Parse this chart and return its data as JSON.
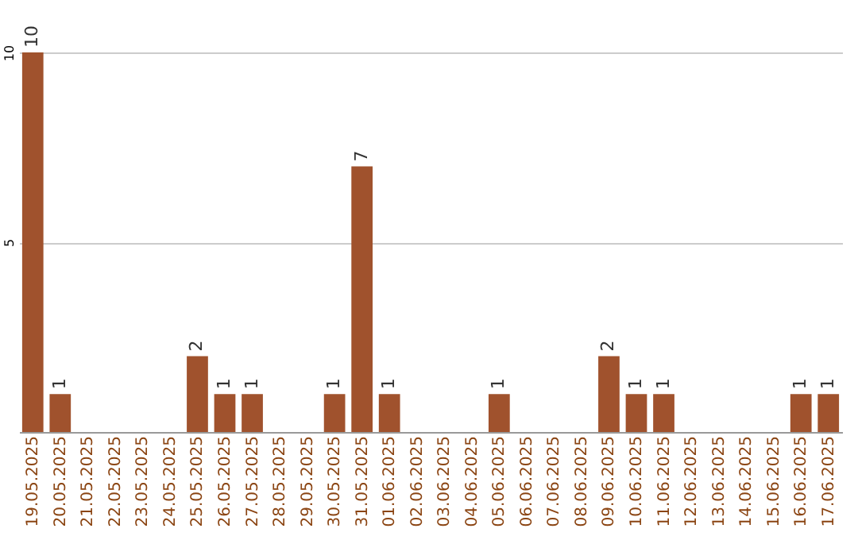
{
  "chart_data": {
    "type": "bar",
    "categories": [
      "19.05.2025",
      "20.05.2025",
      "21.05.2025",
      "22.05.2025",
      "23.05.2025",
      "24.05.2025",
      "25.05.2025",
      "26.05.2025",
      "27.05.2025",
      "28.05.2025",
      "29.05.2025",
      "30.05.2025",
      "31.05.2025",
      "01.06.2025",
      "02.06.2025",
      "03.06.2025",
      "04.06.2025",
      "05.06.2025",
      "06.06.2025",
      "07.06.2025",
      "08.06.2025",
      "09.06.2025",
      "10.06.2025",
      "11.06.2025",
      "12.06.2025",
      "13.06.2025",
      "14.06.2025",
      "15.06.2025",
      "16.06.2025",
      "17.06.2025"
    ],
    "values": [
      10,
      1,
      0,
      0,
      0,
      0,
      2,
      1,
      1,
      0,
      0,
      1,
      7,
      1,
      0,
      0,
      0,
      1,
      0,
      0,
      0,
      2,
      1,
      1,
      0,
      0,
      0,
      0,
      1,
      1
    ],
    "value_labels": [
      "10",
      "1",
      null,
      null,
      null,
      null,
      "2",
      "1",
      "1",
      null,
      null,
      "1",
      "7",
      "1",
      null,
      null,
      null,
      "1",
      null,
      null,
      null,
      "2",
      "1",
      "1",
      null,
      null,
      null,
      null,
      "1",
      "1"
    ],
    "color": "#a0522d",
    "ylim": [
      0,
      10
    ],
    "yticks": [
      5,
      10
    ],
    "grid": "y"
  }
}
